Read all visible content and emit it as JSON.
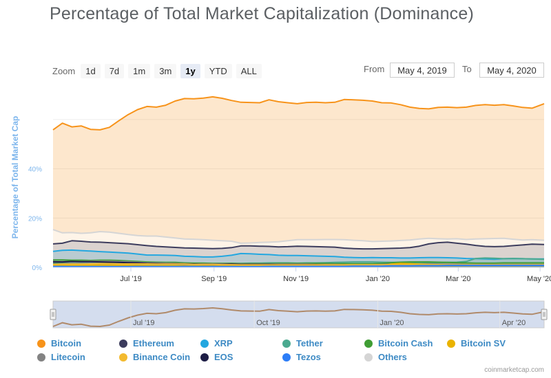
{
  "title": "Percentage of Total Market Capitalization (Dominance)",
  "zoom": {
    "label": "Zoom",
    "buttons": [
      "1d",
      "7d",
      "1m",
      "3m",
      "1y",
      "YTD",
      "ALL"
    ],
    "active": "1y"
  },
  "range": {
    "from_label": "From",
    "from_value": "May 4, 2019",
    "to_label": "To",
    "to_value": "May 4, 2020"
  },
  "credit": "coinmarketcap.com",
  "chart_data": {
    "type": "area",
    "title": "Percentage of Total Market Capitalization (Dominance)",
    "ylabel": "Percentage of Total Market Cap",
    "xlabel": "",
    "ylim": [
      0,
      70
    ],
    "yticks": [
      "0%",
      "20%",
      "40%"
    ],
    "xticks": [
      "Jul '19",
      "Sep '19",
      "Nov '19",
      "Jan '20",
      "Mar '20",
      "May '20"
    ],
    "navigator_ticks": [
      "Jul '19",
      "Oct '19",
      "Jan '20",
      "Apr '20"
    ],
    "grid": true,
    "legend_position": "bottom",
    "x": [
      "2019-05-04",
      "2019-05-11",
      "2019-05-18",
      "2019-05-25",
      "2019-06-01",
      "2019-06-08",
      "2019-06-15",
      "2019-06-22",
      "2019-06-29",
      "2019-07-06",
      "2019-07-13",
      "2019-07-20",
      "2019-07-27",
      "2019-08-03",
      "2019-08-10",
      "2019-08-17",
      "2019-08-24",
      "2019-08-31",
      "2019-09-07",
      "2019-09-14",
      "2019-09-21",
      "2019-09-28",
      "2019-10-05",
      "2019-10-12",
      "2019-10-19",
      "2019-10-26",
      "2019-11-02",
      "2019-11-09",
      "2019-11-16",
      "2019-11-23",
      "2019-11-30",
      "2019-12-07",
      "2019-12-14",
      "2019-12-21",
      "2019-12-28",
      "2020-01-04",
      "2020-01-11",
      "2020-01-18",
      "2020-01-25",
      "2020-02-01",
      "2020-02-08",
      "2020-02-15",
      "2020-02-22",
      "2020-02-29",
      "2020-03-07",
      "2020-03-14",
      "2020-03-21",
      "2020-03-28",
      "2020-04-04",
      "2020-04-11",
      "2020-04-18",
      "2020-04-25",
      "2020-05-04"
    ],
    "series": [
      {
        "name": "Bitcoin",
        "color": "#f7931a",
        "values": [
          55.8,
          58.5,
          57.0,
          57.4,
          56.0,
          55.8,
          56.8,
          59.5,
          62.0,
          64.0,
          65.3,
          65.0,
          65.8,
          67.5,
          68.5,
          68.4,
          68.7,
          69.2,
          68.6,
          67.7,
          67.0,
          66.9,
          66.8,
          68.0,
          67.2,
          66.8,
          66.4,
          66.9,
          67.0,
          66.8,
          67.0,
          68.1,
          68.0,
          67.8,
          67.5,
          66.8,
          66.7,
          66.0,
          65.0,
          64.5,
          64.3,
          64.9,
          65.0,
          64.8,
          65.0,
          65.7,
          66.0,
          65.8,
          66.0,
          65.5,
          64.9,
          64.6,
          66.4
        ]
      },
      {
        "name": "Ethereum",
        "color": "#3c3c5d",
        "values": [
          9.5,
          9.8,
          10.8,
          10.6,
          10.3,
          10.2,
          10.0,
          9.8,
          9.6,
          9.2,
          8.8,
          8.5,
          8.3,
          8.1,
          7.9,
          7.8,
          7.7,
          7.6,
          7.7,
          8.0,
          8.7,
          8.7,
          8.6,
          8.5,
          8.3,
          8.4,
          8.6,
          8.5,
          8.4,
          8.3,
          8.2,
          7.8,
          7.6,
          7.5,
          7.5,
          7.6,
          7.7,
          7.8,
          8.0,
          8.6,
          9.5,
          10.0,
          10.2,
          9.8,
          9.4,
          8.9,
          8.5,
          8.4,
          8.5,
          8.8,
          9.1,
          9.4,
          9.3
        ]
      },
      {
        "name": "XRP",
        "color": "#23a7e0",
        "values": [
          6.5,
          6.9,
          7.0,
          6.8,
          6.6,
          6.4,
          6.2,
          6.0,
          5.8,
          5.4,
          5.0,
          5.0,
          4.9,
          4.8,
          4.5,
          4.4,
          4.2,
          4.2,
          4.5,
          4.9,
          5.6,
          5.5,
          5.3,
          5.2,
          4.9,
          4.8,
          4.8,
          4.7,
          4.6,
          4.5,
          4.4,
          4.1,
          4.0,
          3.9,
          4.0,
          3.9,
          3.9,
          3.8,
          3.8,
          3.9,
          4.0,
          4.0,
          3.9,
          3.8,
          3.6,
          3.5,
          3.4,
          3.3,
          3.5,
          3.6,
          3.5,
          3.4,
          3.4
        ]
      },
      {
        "name": "Tether",
        "color": "#4aa98f",
        "values": [
          1.7,
          1.6,
          1.4,
          1.4,
          1.4,
          1.4,
          1.4,
          1.3,
          1.2,
          1.3,
          1.4,
          1.4,
          1.5,
          1.4,
          1.4,
          1.4,
          1.5,
          1.5,
          1.5,
          1.6,
          1.6,
          1.7,
          1.7,
          1.8,
          1.8,
          1.8,
          1.7,
          1.8,
          1.8,
          1.9,
          2.0,
          2.1,
          2.2,
          2.2,
          2.2,
          2.1,
          2.0,
          2.0,
          1.9,
          2.0,
          1.9,
          1.9,
          2.0,
          2.1,
          2.4,
          3.6,
          3.8,
          3.7,
          3.5,
          3.6,
          3.5,
          3.4,
          3.3
        ]
      },
      {
        "name": "Bitcoin Cash",
        "color": "#3f9d34",
        "values": [
          3.0,
          3.0,
          2.9,
          2.9,
          2.8,
          2.9,
          2.9,
          2.8,
          2.6,
          2.4,
          2.2,
          2.1,
          2.0,
          2.0,
          1.8,
          1.7,
          1.7,
          1.6,
          1.6,
          1.6,
          1.5,
          1.5,
          1.5,
          1.5,
          1.6,
          1.6,
          1.6,
          1.6,
          1.6,
          1.6,
          1.5,
          1.5,
          1.5,
          1.5,
          1.5,
          1.6,
          1.9,
          2.1,
          2.2,
          2.2,
          2.2,
          2.1,
          2.0,
          1.9,
          1.8,
          1.7,
          1.7,
          1.7,
          1.8,
          1.8,
          1.8,
          1.8,
          1.8
        ]
      },
      {
        "name": "Bitcoin SV",
        "color": "#eab300",
        "values": [
          1.0,
          1.0,
          0.9,
          0.9,
          0.9,
          0.9,
          0.9,
          0.8,
          0.8,
          0.7,
          0.7,
          0.6,
          0.6,
          0.6,
          0.5,
          0.5,
          0.5,
          0.5,
          0.5,
          0.5,
          0.5,
          0.5,
          0.5,
          0.5,
          0.5,
          0.5,
          0.5,
          0.5,
          0.5,
          0.5,
          0.5,
          0.5,
          0.5,
          0.5,
          0.5,
          0.7,
          1.3,
          1.6,
          1.5,
          1.3,
          1.2,
          1.1,
          1.0,
          1.0,
          1.0,
          1.0,
          0.9,
          0.9,
          0.9,
          0.9,
          0.9,
          0.9,
          0.9
        ]
      },
      {
        "name": "Litecoin",
        "color": "#838383",
        "values": [
          2.2,
          2.3,
          2.4,
          2.4,
          2.5,
          2.5,
          2.5,
          2.4,
          2.3,
          2.1,
          1.9,
          1.8,
          1.7,
          1.6,
          1.5,
          1.4,
          1.4,
          1.4,
          1.4,
          1.4,
          1.3,
          1.3,
          1.3,
          1.3,
          1.3,
          1.3,
          1.3,
          1.3,
          1.2,
          1.2,
          1.2,
          1.1,
          1.1,
          1.1,
          1.1,
          1.2,
          1.3,
          1.3,
          1.3,
          1.3,
          1.4,
          1.3,
          1.3,
          1.3,
          1.2,
          1.2,
          1.2,
          1.2,
          1.2,
          1.2,
          1.2,
          1.2,
          1.2
        ]
      },
      {
        "name": "Binance Coin",
        "color": "#f3ba2f",
        "values": [
          1.2,
          1.3,
          1.3,
          1.3,
          1.4,
          1.5,
          1.5,
          1.4,
          1.4,
          1.4,
          1.4,
          1.3,
          1.3,
          1.3,
          1.3,
          1.2,
          1.2,
          1.2,
          1.1,
          1.1,
          1.0,
          1.0,
          1.0,
          1.0,
          1.0,
          1.0,
          1.0,
          1.0,
          1.0,
          1.0,
          1.0,
          1.0,
          1.0,
          1.0,
          1.0,
          1.0,
          1.0,
          1.0,
          1.0,
          1.0,
          1.1,
          1.1,
          1.1,
          1.1,
          1.1,
          1.1,
          1.1,
          1.1,
          1.1,
          1.1,
          1.1,
          1.1,
          1.1
        ]
      },
      {
        "name": "EOS",
        "color": "#1d1d45",
        "values": [
          2.3,
          2.2,
          2.4,
          2.3,
          2.3,
          2.2,
          2.1,
          2.0,
          1.9,
          1.8,
          1.6,
          1.5,
          1.4,
          1.4,
          1.3,
          1.3,
          1.2,
          1.2,
          1.2,
          1.3,
          1.2,
          1.2,
          1.2,
          1.2,
          1.1,
          1.1,
          1.1,
          1.1,
          1.1,
          1.0,
          1.0,
          1.0,
          0.9,
          0.9,
          0.9,
          0.9,
          0.9,
          0.9,
          0.9,
          0.9,
          0.9,
          0.9,
          0.9,
          0.9,
          0.9,
          0.9,
          0.9,
          0.9,
          0.9,
          0.9,
          0.9,
          0.9,
          0.9
        ]
      },
      {
        "name": "Tezos",
        "color": "#2c7df7",
        "values": [
          0.3,
          0.3,
          0.3,
          0.3,
          0.3,
          0.3,
          0.3,
          0.3,
          0.3,
          0.3,
          0.3,
          0.3,
          0.3,
          0.3,
          0.3,
          0.3,
          0.3,
          0.3,
          0.3,
          0.3,
          0.3,
          0.3,
          0.3,
          0.4,
          0.4,
          0.4,
          0.4,
          0.4,
          0.4,
          0.4,
          0.4,
          0.4,
          0.5,
          0.5,
          0.5,
          0.5,
          0.6,
          0.6,
          0.6,
          0.7,
          0.7,
          0.7,
          0.8,
          0.8,
          0.8,
          0.8,
          0.8,
          0.8,
          0.8,
          0.8,
          0.8,
          0.8,
          0.8
        ]
      },
      {
        "name": "Others",
        "color": "#d5d5d5",
        "values": [
          15.3,
          14.0,
          14.1,
          13.8,
          14.0,
          14.5,
          14.3,
          13.8,
          13.3,
          12.9,
          12.7,
          12.7,
          12.3,
          11.9,
          11.5,
          11.4,
          11.2,
          11.0,
          10.8,
          10.6,
          9.8,
          9.9,
          10.1,
          10.2,
          10.4,
          10.8,
          11.2,
          11.2,
          11.2,
          11.3,
          11.3,
          11.2,
          11.0,
          10.8,
          10.5,
          10.6,
          10.7,
          10.9,
          11.1,
          11.5,
          11.8,
          11.6,
          11.5,
          11.6,
          11.3,
          11.5,
          11.6,
          11.7,
          11.8,
          11.4,
          11.1,
          11.2,
          11.0
        ]
      }
    ]
  }
}
